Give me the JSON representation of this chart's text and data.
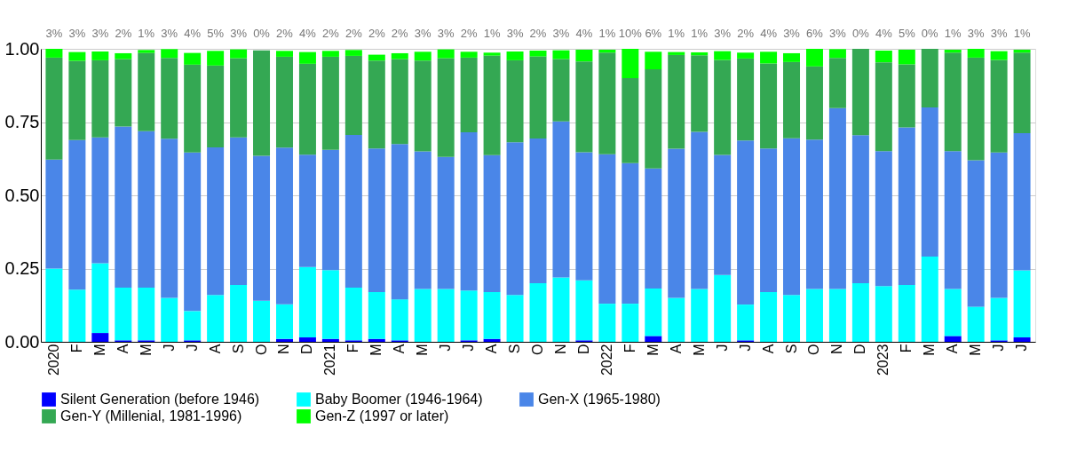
{
  "chart_data": {
    "type": "bar",
    "stacked": true,
    "legend": "bottom",
    "grid": "y",
    "categories": [
      "2020",
      "F",
      "M",
      "A",
      "M",
      "J",
      "J",
      "A",
      "S",
      "O",
      "N",
      "D",
      "2021",
      "F",
      "M",
      "A",
      "M",
      "J",
      "J",
      "A",
      "S",
      "O",
      "N",
      "D",
      "2022",
      "F",
      "M",
      "A",
      "M",
      "J",
      "J",
      "A",
      "S",
      "O",
      "N",
      "D",
      "2023",
      "F",
      "M",
      "A",
      "M",
      "J",
      "J"
    ],
    "ylim": [
      0,
      1
    ],
    "yticks": [
      {
        "value": 0,
        "label": "0.00"
      },
      {
        "value": 0.25,
        "label": "0.25"
      },
      {
        "value": 0.5,
        "label": "0.50"
      },
      {
        "value": 0.75,
        "label": "0.75"
      },
      {
        "value": 1,
        "label": "1.00"
      }
    ],
    "series": [
      {
        "name": "Silent Generation (before 1946)",
        "color": "#0000ff",
        "values": [
          0,
          0,
          0.03,
          0.005,
          0.005,
          0,
          0.005,
          0,
          0,
          0,
          0.01,
          0.015,
          0.01,
          0.005,
          0.01,
          0.005,
          0,
          0,
          0.005,
          0.01,
          0,
          0,
          0,
          0.005,
          0,
          0,
          0.02,
          0,
          0,
          0,
          0.005,
          0,
          0,
          0,
          0,
          0,
          0,
          0,
          0,
          0.02,
          0,
          0.005,
          0.015
        ]
      },
      {
        "name": "Baby Boomer (1946-1964)",
        "color": "#00ffff",
        "values": [
          0.25,
          0.178,
          0.238,
          0.18,
          0.18,
          0.15,
          0.1,
          0.16,
          0.194,
          0.14,
          0.118,
          0.24,
          0.235,
          0.18,
          0.16,
          0.14,
          0.18,
          0.18,
          0.17,
          0.16,
          0.16,
          0.2,
          0.22,
          0.205,
          0.13,
          0.13,
          0.162,
          0.15,
          0.18,
          0.228,
          0.122,
          0.17,
          0.16,
          0.18,
          0.18,
          0.2,
          0.19,
          0.194,
          0.291,
          0.16,
          0.12,
          0.145,
          0.229
        ]
      },
      {
        "name": "Gen-X (1965-1980)",
        "color": "#4a86e8",
        "values": [
          0.372,
          0.511,
          0.43,
          0.55,
          0.534,
          0.543,
          0.541,
          0.504,
          0.504,
          0.495,
          0.535,
          0.384,
          0.41,
          0.521,
          0.49,
          0.53,
          0.47,
          0.451,
          0.54,
          0.467,
          0.521,
          0.494,
          0.532,
          0.437,
          0.51,
          0.48,
          0.41,
          0.509,
          0.537,
          0.41,
          0.56,
          0.49,
          0.535,
          0.51,
          0.618,
          0.505,
          0.461,
          0.538,
          0.509,
          0.471,
          0.5,
          0.496,
          0.468
        ]
      },
      {
        "name": "Gen-Y (Millenial, 1981-1996)",
        "color": "#34a853",
        "values": [
          0.348,
          0.27,
          0.263,
          0.23,
          0.267,
          0.276,
          0.3,
          0.279,
          0.27,
          0.36,
          0.31,
          0.31,
          0.318,
          0.27,
          0.3,
          0.29,
          0.31,
          0.337,
          0.255,
          0.34,
          0.28,
          0.28,
          0.213,
          0.31,
          0.347,
          0.29,
          0.338,
          0.32,
          0.261,
          0.324,
          0.28,
          0.29,
          0.26,
          0.25,
          0.171,
          0.295,
          0.303,
          0.215,
          0.2,
          0.336,
          0.35,
          0.316,
          0.275
        ]
      },
      {
        "name": "Gen-Z (1997 or later)",
        "color": "#00ff00",
        "values": [
          0.03,
          0.03,
          0.03,
          0.02,
          0.01,
          0.03,
          0.04,
          0.05,
          0.03,
          0,
          0.02,
          0.04,
          0.02,
          0.02,
          0.02,
          0.02,
          0.03,
          0.03,
          0.02,
          0.01,
          0.03,
          0.02,
          0.03,
          0.04,
          0.01,
          0.1,
          0.06,
          0.01,
          0.01,
          0.03,
          0.02,
          0.04,
          0.03,
          0.06,
          0.03,
          0,
          0.04,
          0.05,
          0,
          0.01,
          0.03,
          0.03,
          0.01
        ],
        "value_labels": [
          "3%",
          "3%",
          "3%",
          "2%",
          "1%",
          "3%",
          "4%",
          "5%",
          "3%",
          "0%",
          "2%",
          "4%",
          "2%",
          "2%",
          "2%",
          "2%",
          "3%",
          "3%",
          "2%",
          "1%",
          "3%",
          "2%",
          "3%",
          "4%",
          "1%",
          "10%",
          "6%",
          "1%",
          "1%",
          "3%",
          "2%",
          "4%",
          "3%",
          "6%",
          "3%",
          "0%",
          "4%",
          "5%",
          "0%",
          "1%",
          "3%",
          "3%",
          "1%"
        ]
      }
    ]
  }
}
